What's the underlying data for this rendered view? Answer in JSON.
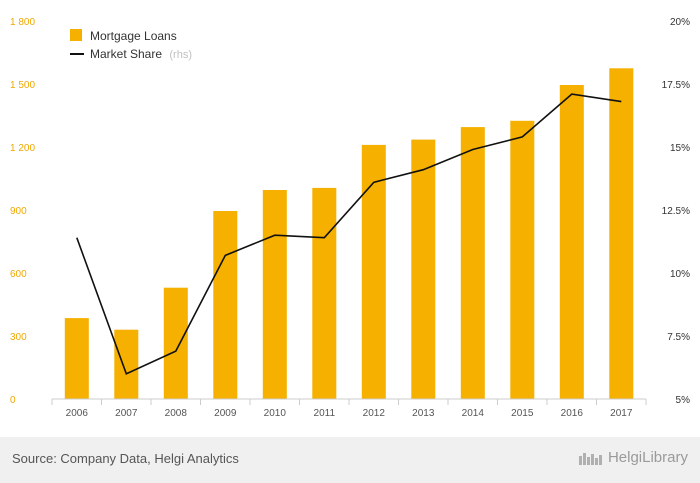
{
  "chart_data": {
    "type": "bar",
    "categories": [
      "2006",
      "2007",
      "2008",
      "2009",
      "2010",
      "2011",
      "2012",
      "2013",
      "2014",
      "2015",
      "2016",
      "2017"
    ],
    "series": [
      {
        "name": "Mortgage Loans",
        "type": "bar",
        "axis": "left",
        "values": [
          385,
          330,
          530,
          895,
          995,
          1005,
          1210,
          1235,
          1295,
          1325,
          1495,
          1575
        ]
      },
      {
        "name": "Market Share",
        "name_suffix": "(rhs)",
        "type": "line",
        "axis": "right",
        "values": [
          11.4,
          6.0,
          6.9,
          10.7,
          11.5,
          11.4,
          13.6,
          14.1,
          14.9,
          15.4,
          17.1,
          16.8
        ]
      }
    ],
    "y_left": {
      "ylim": [
        0,
        1800
      ],
      "ticks": [
        0,
        300,
        600,
        900,
        1200,
        1500,
        1800
      ],
      "tick_labels": [
        "0",
        "300",
        "600",
        "900",
        "1 200",
        "1 500",
        "1 800"
      ]
    },
    "y_right": {
      "ylim": [
        5,
        20
      ],
      "ticks": [
        5,
        7.5,
        10,
        12.5,
        15,
        17.5,
        20
      ],
      "tick_labels": [
        "5%",
        "7.5%",
        "10%",
        "12.5%",
        "15%",
        "17.5%",
        "20%"
      ]
    },
    "grid": false,
    "legend_position": "top-left",
    "colors": {
      "bar": "#f5b000",
      "line": "#111111",
      "left_axis_text": "#f0a800"
    }
  },
  "footer": {
    "source": "Source: Company Data, Helgi Analytics",
    "brand": "HelgiLibrary"
  }
}
